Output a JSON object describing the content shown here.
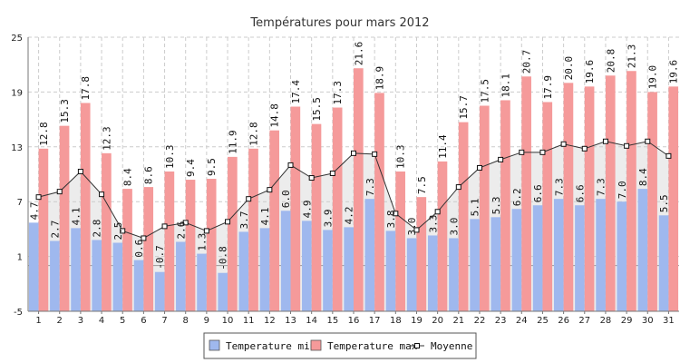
{
  "chart_data": {
    "type": "bar",
    "title": "Températures pour mars 2012",
    "xlabel": "",
    "ylabel": "",
    "ylim": [
      -5,
      25
    ],
    "yticks": [
      -5,
      1,
      7,
      13,
      19,
      25
    ],
    "grid": true,
    "legend": "bottom-center",
    "categories": [
      "1",
      "2",
      "3",
      "4",
      "5",
      "6",
      "7",
      "8",
      "9",
      "10",
      "11",
      "12",
      "13",
      "14",
      "15",
      "16",
      "17",
      "18",
      "19",
      "20",
      "21",
      "22",
      "23",
      "24",
      "25",
      "26",
      "27",
      "28",
      "29",
      "30",
      "31"
    ],
    "series": [
      {
        "name": "Temperature min",
        "kind": "bar",
        "color": "#9fb8ee",
        "values": [
          4.7,
          2.7,
          4.1,
          2.8,
          2.5,
          0.6,
          -0.7,
          2.6,
          1.3,
          -0.8,
          3.7,
          4.1,
          6.0,
          4.9,
          3.9,
          4.2,
          7.3,
          3.8,
          3.0,
          3.3,
          3.0,
          5.1,
          5.3,
          6.2,
          6.6,
          7.3,
          6.6,
          7.3,
          7.0,
          8.4,
          5.5
        ]
      },
      {
        "name": "Temperature max",
        "kind": "bar",
        "color": "#f59a9a",
        "values": [
          12.8,
          15.3,
          17.8,
          12.3,
          8.4,
          8.6,
          10.3,
          9.4,
          9.5,
          11.9,
          12.8,
          14.8,
          17.4,
          15.5,
          17.3,
          21.6,
          18.9,
          10.3,
          7.5,
          11.4,
          15.7,
          17.5,
          18.1,
          20.7,
          17.9,
          20.0,
          19.6,
          20.8,
          21.3,
          19.0,
          19.6
        ]
      },
      {
        "name": "Moyenne",
        "kind": "line",
        "color": "#333333",
        "values": [
          7.5,
          8.1,
          10.3,
          7.8,
          3.8,
          3.0,
          4.3,
          4.7,
          3.8,
          4.8,
          7.3,
          8.3,
          11.0,
          9.6,
          10.1,
          12.3,
          12.2,
          5.7,
          3.9,
          5.9,
          8.6,
          10.7,
          11.6,
          12.4,
          12.4,
          13.3,
          12.8,
          13.6,
          13.1,
          13.6,
          12.0
        ]
      }
    ]
  }
}
